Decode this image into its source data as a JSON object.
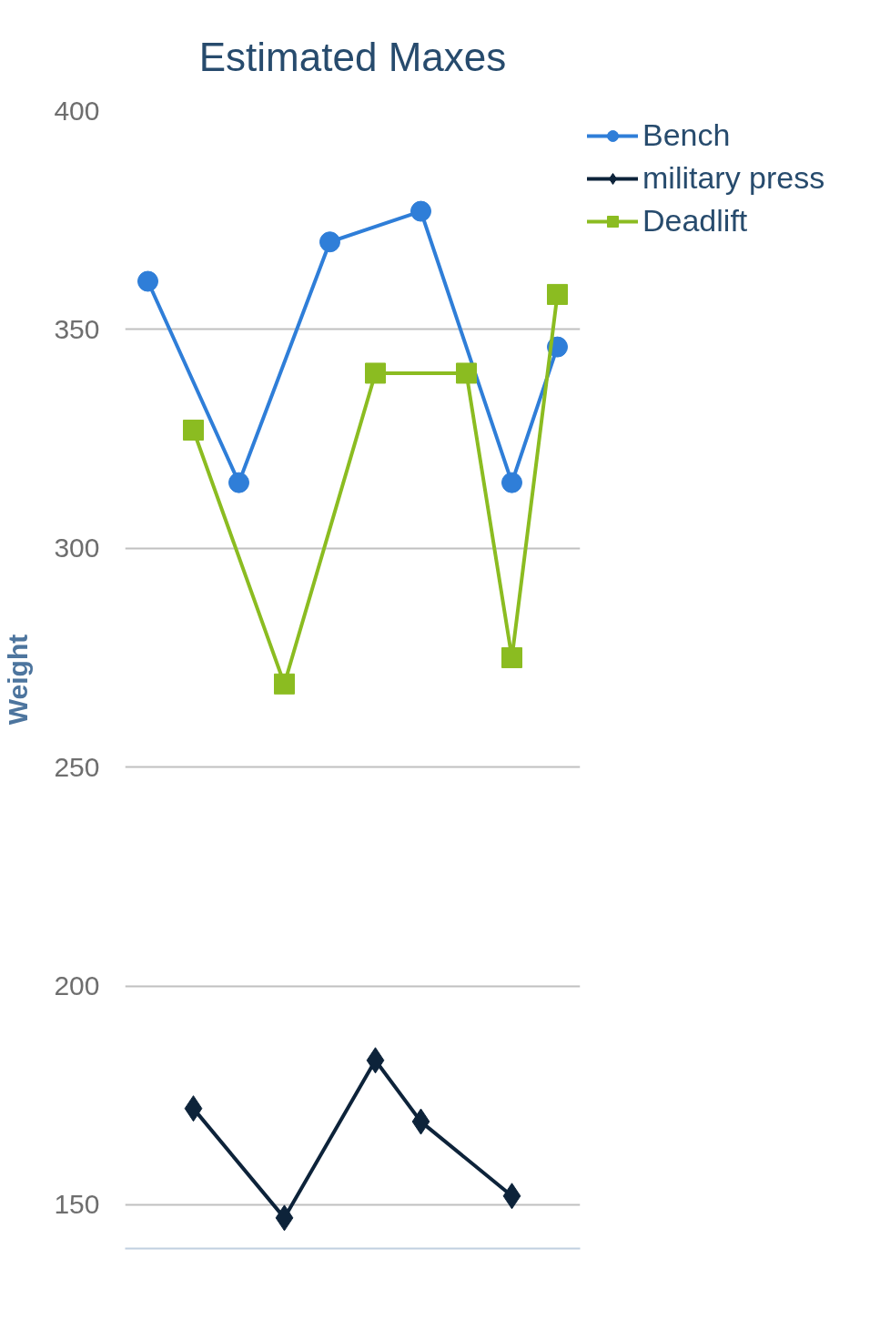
{
  "chart_data": {
    "type": "line",
    "title": "Estimated Maxes",
    "ylabel": "Weight",
    "categories": [
      null,
      null,
      null,
      null,
      null,
      null,
      null,
      null,
      null,
      null
    ],
    "series": [
      {
        "name": "Bench",
        "color": "#2f7ed8",
        "marker": "circle",
        "values": [
          361,
          null,
          315,
          null,
          370,
          null,
          377,
          null,
          315,
          346
        ]
      },
      {
        "name": "military press",
        "color": "#0d233a",
        "marker": "diamond",
        "values": [
          null,
          172,
          null,
          147,
          null,
          183,
          169,
          null,
          152,
          null
        ]
      },
      {
        "name": "Deadlift",
        "color": "#8bbc21",
        "marker": "square",
        "values": [
          null,
          327,
          null,
          269,
          null,
          340,
          null,
          340,
          275,
          358
        ]
      }
    ],
    "ylim": [
      140,
      400
    ],
    "yticks": [
      150,
      200,
      250,
      300,
      350,
      400
    ],
    "grid": "y",
    "legend": "right",
    "tick_labels": "y",
    "line_style": "solid"
  }
}
